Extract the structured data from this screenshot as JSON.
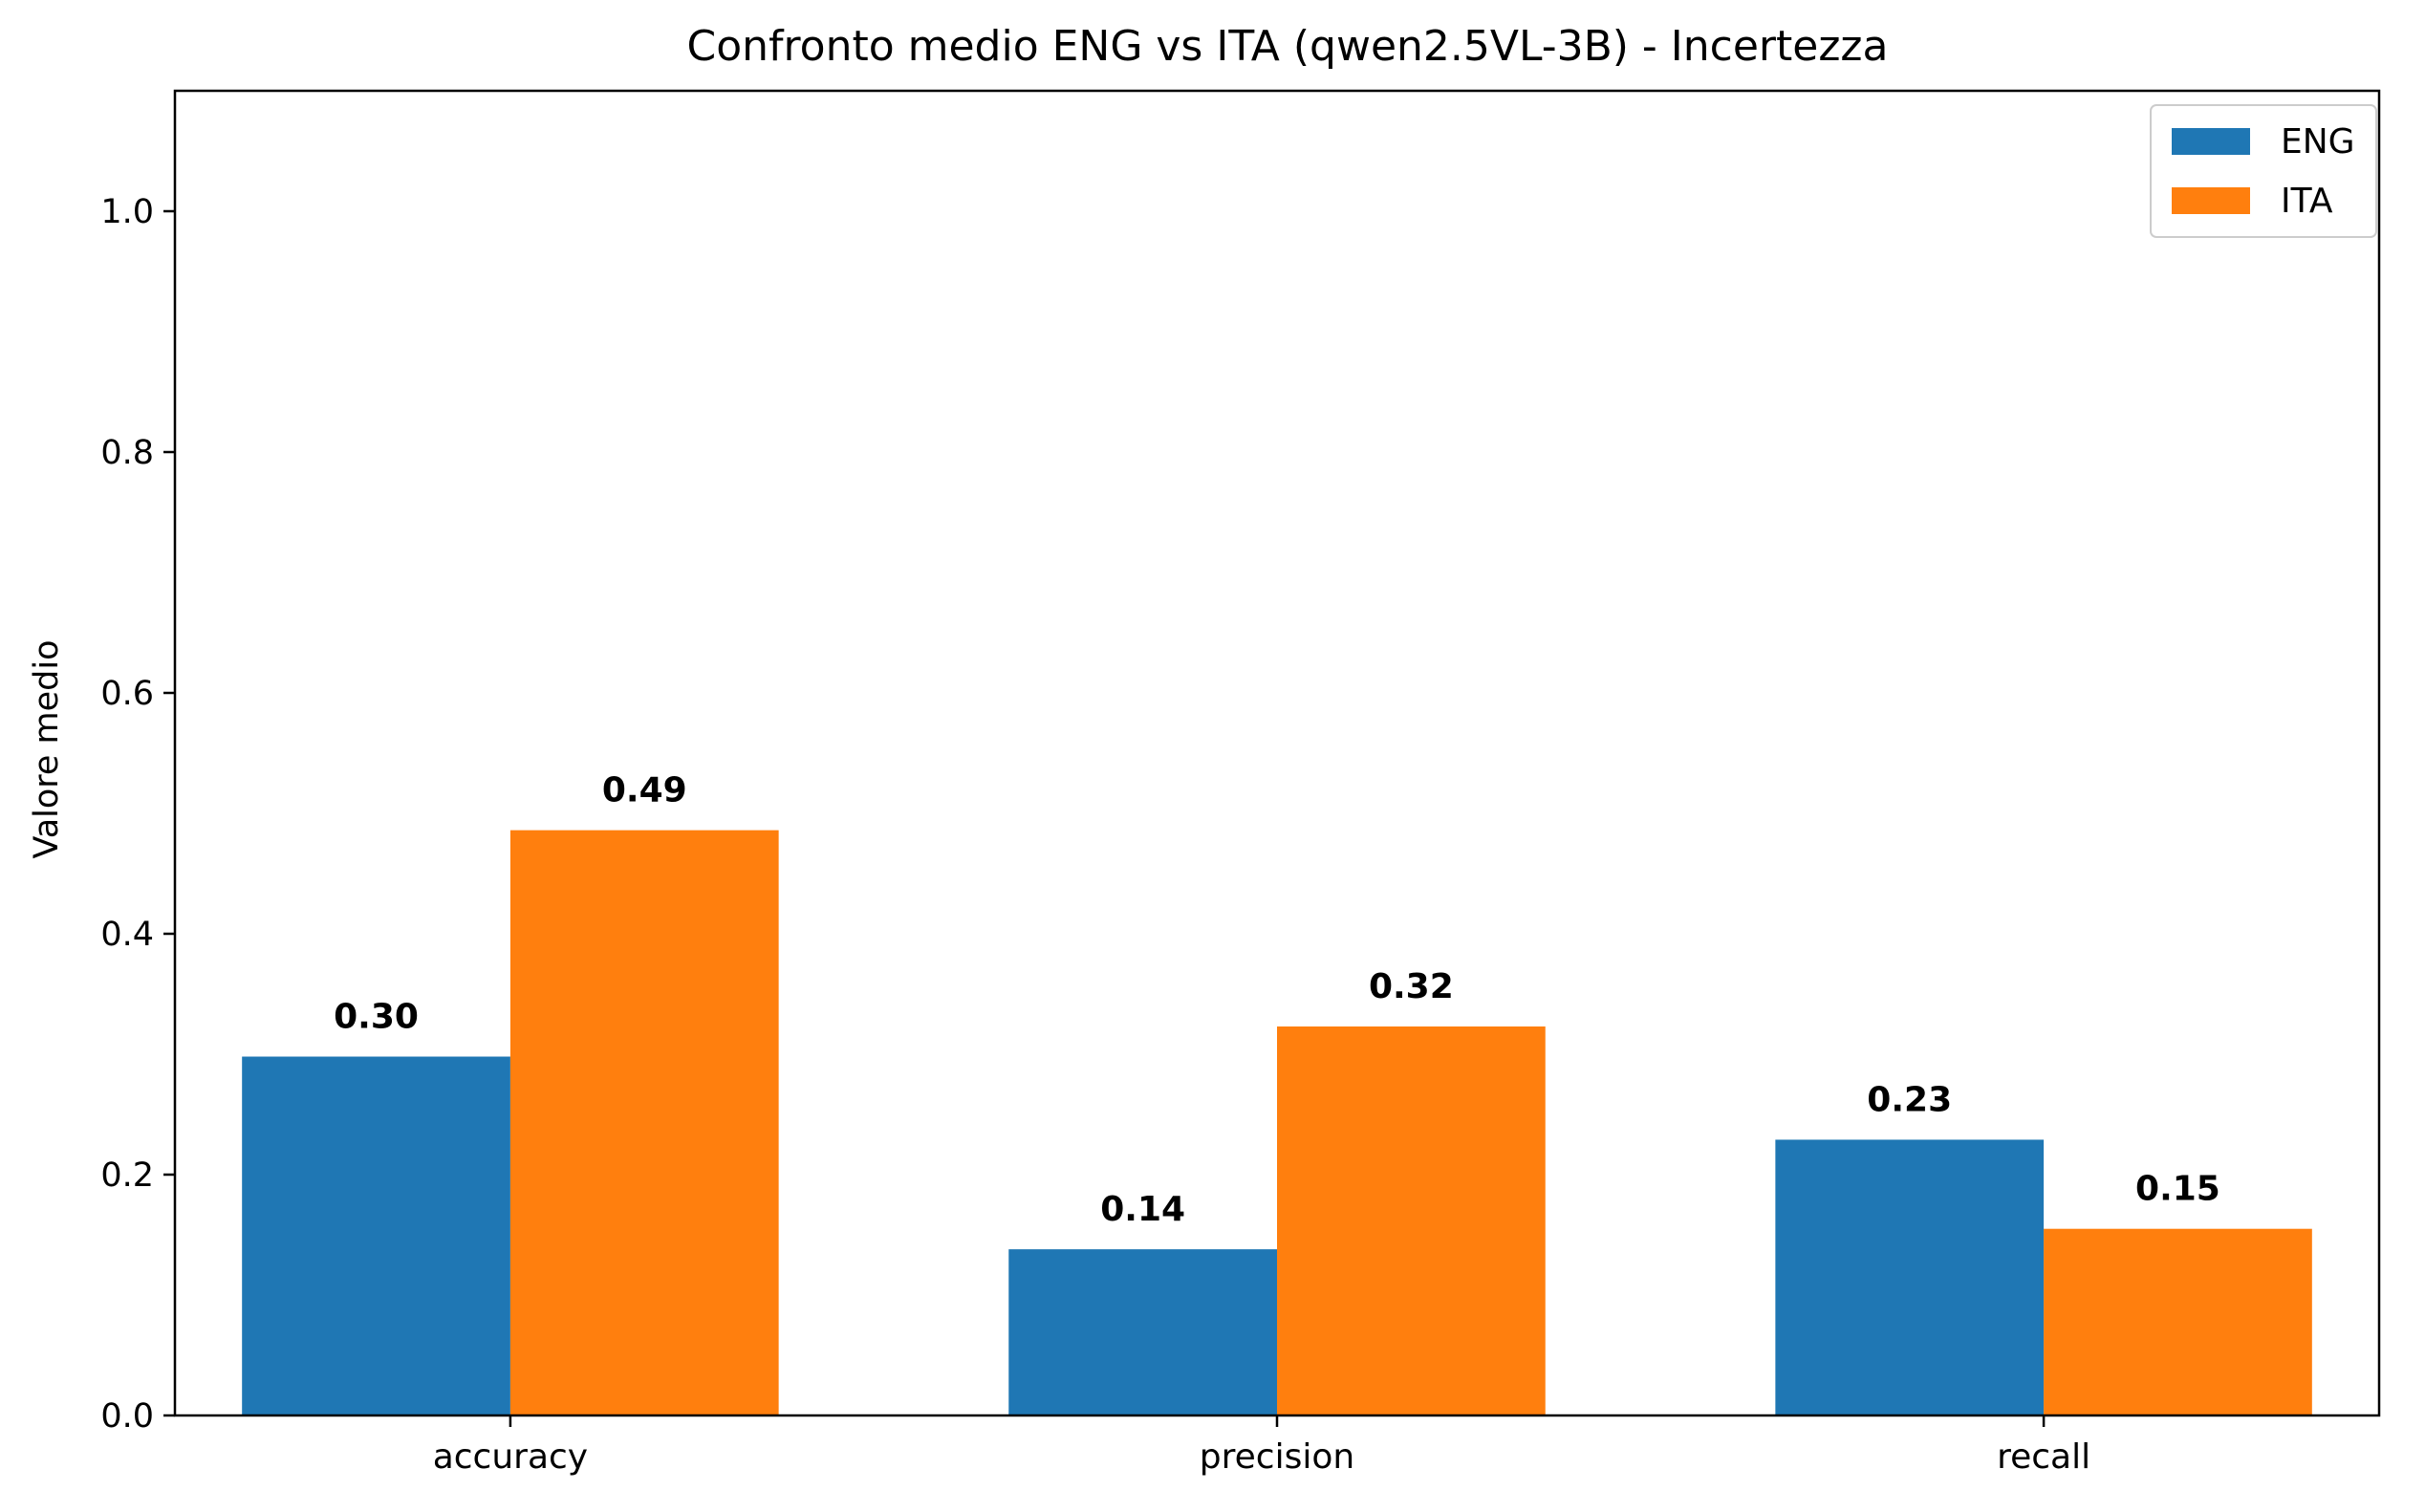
{
  "chart_data": {
    "type": "bar",
    "title": "Confronto medio ENG vs ITA (qwen2.5VL-3B) - Incertezza",
    "xlabel": "",
    "ylabel": "Valore medio",
    "categories": [
      "accuracy",
      "precision",
      "recall"
    ],
    "series": [
      {
        "name": "ENG",
        "color": "#1f77b4",
        "values": [
          0.298,
          0.138,
          0.229
        ]
      },
      {
        "name": "ITA",
        "color": "#ff7f0e",
        "values": [
          0.486,
          0.323,
          0.155
        ]
      }
    ],
    "value_labels": [
      [
        "0.30",
        "0.14",
        "0.23"
      ],
      [
        "0.49",
        "0.32",
        "0.15"
      ]
    ],
    "ylim": [
      0,
      1.1
    ],
    "yticks": [
      "0.0",
      "0.2",
      "0.4",
      "0.6",
      "0.8",
      "1.0"
    ],
    "ytick_values": [
      0,
      0.2,
      0.4,
      0.6,
      0.8,
      1.0
    ],
    "grid": false,
    "legend_position": "top-right"
  }
}
